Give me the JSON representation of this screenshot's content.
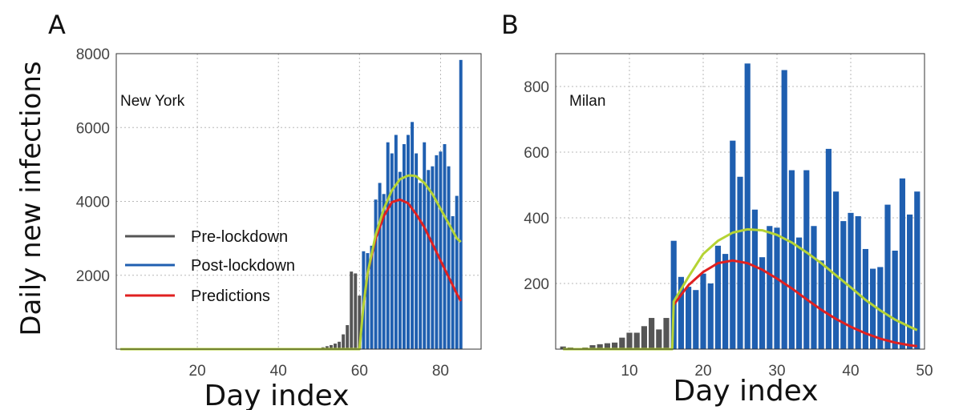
{
  "ylabel": "Daily new infections",
  "colors": {
    "pre": "#555555",
    "post": "#1f5fb0",
    "pred": "#e02020",
    "fit": "#b5d334",
    "grid": "#b8b8b8"
  },
  "legend": {
    "items": [
      {
        "label": "Pre-lockdown",
        "color": "#555555"
      },
      {
        "label": "Post-lockdown",
        "color": "#1f5fb0"
      },
      {
        "label": "Predictions",
        "color": "#e02020"
      }
    ]
  },
  "chart_data": [
    {
      "panel": "A",
      "type": "bar",
      "city": "New York",
      "xlabel": "Day index",
      "xlim": [
        0,
        90
      ],
      "ylim": [
        0,
        8000
      ],
      "xticks": [
        20,
        40,
        60,
        80
      ],
      "yticks": [
        2000,
        4000,
        6000,
        8000
      ],
      "grid": true,
      "pre_lockdown": {
        "x": [
          50,
          51,
          52,
          53,
          54,
          55,
          56,
          57,
          58,
          59,
          60
        ],
        "values": [
          30,
          50,
          80,
          110,
          150,
          200,
          400,
          650,
          2100,
          2050,
          1450
        ]
      },
      "post_lockdown": {
        "x": [
          61,
          62,
          63,
          64,
          65,
          66,
          67,
          68,
          69,
          70,
          71,
          72,
          73,
          74,
          75,
          76,
          77,
          78,
          79,
          80,
          81,
          82,
          83,
          84,
          85
        ],
        "values": [
          2650,
          2600,
          2800,
          4050,
          4500,
          4200,
          5600,
          5300,
          5800,
          4800,
          5550,
          5800,
          6150,
          5300,
          4500,
          5600,
          4850,
          4950,
          5250,
          5350,
          5550,
          4950,
          3600,
          4150,
          7830
        ]
      },
      "predictions": {
        "x": [
          61,
          62,
          64,
          66,
          68,
          70,
          72,
          74,
          76,
          78,
          80,
          82,
          84,
          85
        ],
        "values": [
          1200,
          2050,
          3000,
          3600,
          3980,
          4050,
          3950,
          3650,
          3300,
          2850,
          2400,
          1950,
          1500,
          1300
        ]
      },
      "fit": {
        "x": [
          1,
          60,
          61,
          62,
          64,
          66,
          68,
          70,
          72,
          73,
          74,
          76,
          78,
          80,
          82,
          84,
          85
        ],
        "values": [
          0,
          0,
          1200,
          2050,
          3100,
          3800,
          4300,
          4600,
          4700,
          4700,
          4680,
          4500,
          4200,
          3800,
          3400,
          3000,
          2900
        ]
      }
    },
    {
      "panel": "B",
      "type": "bar",
      "city": "Milan",
      "xlabel": "Day index",
      "xlim": [
        0,
        50
      ],
      "ylim": [
        0,
        900
      ],
      "xticks": [
        10,
        20,
        30,
        40,
        50
      ],
      "yticks": [
        200,
        400,
        600,
        800
      ],
      "grid": true,
      "pre_lockdown": {
        "x": [
          1,
          2,
          3,
          4,
          5,
          6,
          7,
          8,
          9,
          10,
          11,
          12,
          13,
          14,
          15
        ],
        "values": [
          8,
          5,
          3,
          5,
          12,
          15,
          18,
          20,
          35,
          50,
          50,
          70,
          95,
          60,
          95
        ]
      },
      "post_lockdown": {
        "x": [
          16,
          17,
          18,
          19,
          20,
          21,
          22,
          23,
          24,
          25,
          26,
          27,
          28,
          29,
          30,
          31,
          32,
          33,
          34,
          35,
          36,
          37,
          38,
          39,
          40,
          41,
          42,
          43,
          44,
          45,
          46,
          47,
          48,
          49
        ],
        "values": [
          330,
          220,
          190,
          180,
          230,
          200,
          315,
          290,
          635,
          525,
          870,
          425,
          280,
          375,
          370,
          850,
          545,
          340,
          545,
          375,
          270,
          610,
          480,
          390,
          415,
          405,
          305,
          245,
          250,
          440,
          300,
          520,
          410,
          480
        ]
      },
      "predictions": {
        "x": [
          16,
          18,
          20,
          22,
          24,
          26,
          28,
          30,
          32,
          34,
          36,
          38,
          40,
          42,
          44,
          46,
          48,
          49
        ],
        "values": [
          135,
          195,
          235,
          262,
          270,
          262,
          242,
          215,
          185,
          152,
          120,
          92,
          68,
          48,
          32,
          20,
          12,
          9
        ]
      },
      "fit": {
        "x": [
          1,
          15.8,
          16,
          18,
          20,
          22,
          24,
          26,
          28,
          30,
          32,
          34,
          36,
          38,
          40,
          42,
          44,
          46,
          48,
          49
        ],
        "values": [
          0,
          0,
          145,
          220,
          290,
          330,
          355,
          365,
          362,
          348,
          325,
          295,
          262,
          225,
          188,
          150,
          118,
          90,
          68,
          58
        ]
      }
    }
  ]
}
